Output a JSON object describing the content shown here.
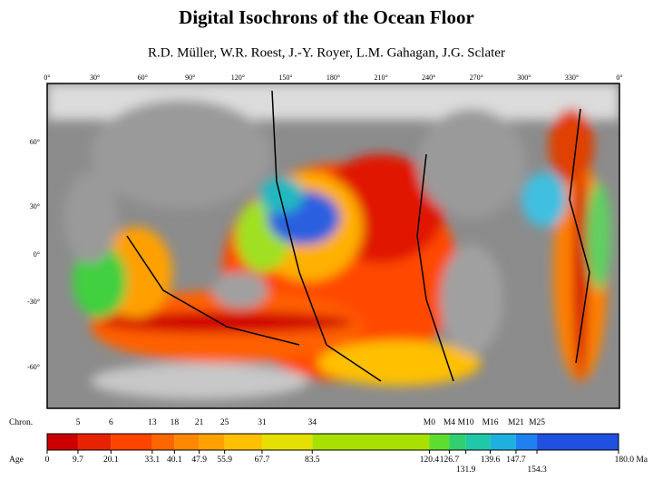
{
  "title": "Digital Isochrons of the Ocean Floor",
  "authors": "R.D. Müller, W.R. Roest, J.-Y. Royer, L.M. Gahagan, J.G. Sclater",
  "map": {
    "longitude_labels": [
      "0°",
      "30°",
      "60°",
      "90°",
      "120°",
      "150°",
      "180°",
      "210°",
      "240°",
      "270°",
      "300°",
      "330°",
      "0°"
    ],
    "latitude_labels": [
      "60°",
      "30°",
      "0°",
      "-30°",
      "-60°"
    ]
  },
  "legend": {
    "chron_title": "Chron.",
    "chrons": [
      "5",
      "6",
      "13",
      "18",
      "21",
      "25",
      "31",
      "34",
      "M0",
      "M4",
      "M10",
      "M16",
      "M21",
      "M25"
    ],
    "age_title": "Age",
    "age_ticks": [
      {
        "value": 0,
        "label": "0"
      },
      {
        "value": 9.7,
        "label": "9.7"
      },
      {
        "value": 20.1,
        "label": "20.1"
      },
      {
        "value": 33.1,
        "label": "33.1"
      },
      {
        "value": 40.1,
        "label": "40.1"
      },
      {
        "value": 47.9,
        "label": "47.9"
      },
      {
        "value": 55.9,
        "label": "55.9"
      },
      {
        "value": 67.7,
        "label": "67.7"
      },
      {
        "value": 83.5,
        "label": "83.5"
      },
      {
        "value": 120.4,
        "label": "120.4"
      },
      {
        "value": 126.7,
        "label": "126.7"
      },
      {
        "value": 131.9,
        "label": "131.9"
      },
      {
        "value": 139.6,
        "label": "139.6"
      },
      {
        "value": 147.7,
        "label": "147.7"
      },
      {
        "value": 154.3,
        "label": "154.3"
      },
      {
        "value": 180.0,
        "label": "180.0 Ma"
      }
    ],
    "colors": [
      "#cc0000",
      "#e62200",
      "#ff4400",
      "#ff6600",
      "#ff8800",
      "#ffa200",
      "#ffc000",
      "#e6e000",
      "#a8e000",
      "#5fdc30",
      "#30d070",
      "#20c8a8",
      "#20b0e0",
      "#2080f0",
      "#2050e0"
    ]
  }
}
